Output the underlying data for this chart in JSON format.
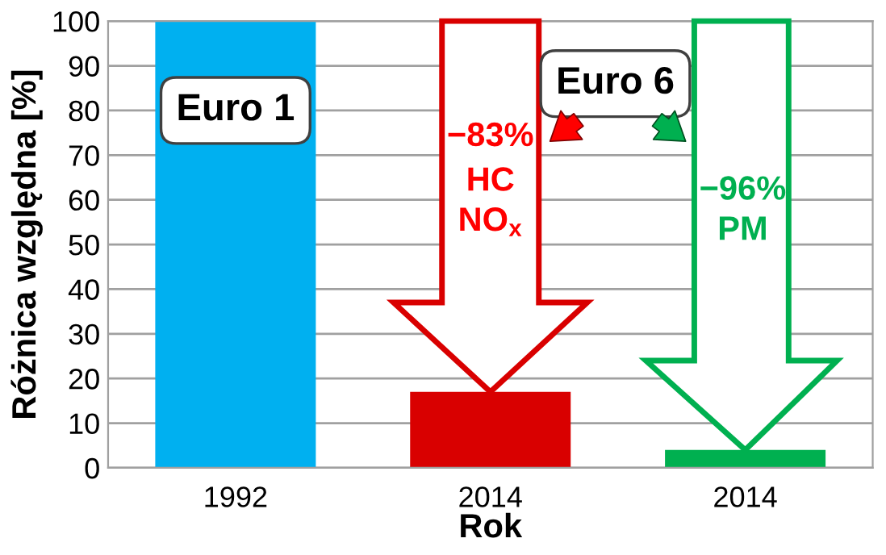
{
  "chart_data": {
    "type": "bar",
    "xlabel": "Rok",
    "ylabel": "Różnica względna [%]",
    "categories": [
      "1992",
      "2014",
      "2014"
    ],
    "values": [
      100,
      17,
      4
    ],
    "colors": [
      "#00b0f0",
      "#d90000",
      "#00b050"
    ],
    "ylim": [
      0,
      100
    ],
    "yticks": [
      0,
      10,
      20,
      30,
      40,
      50,
      60,
      70,
      80,
      90,
      100
    ],
    "grid": "y",
    "annotations": [
      "Euro 1",
      "Euro 6",
      "−83%",
      "HC",
      "NO$_{x}$",
      "−96%",
      "PM"
    ]
  }
}
